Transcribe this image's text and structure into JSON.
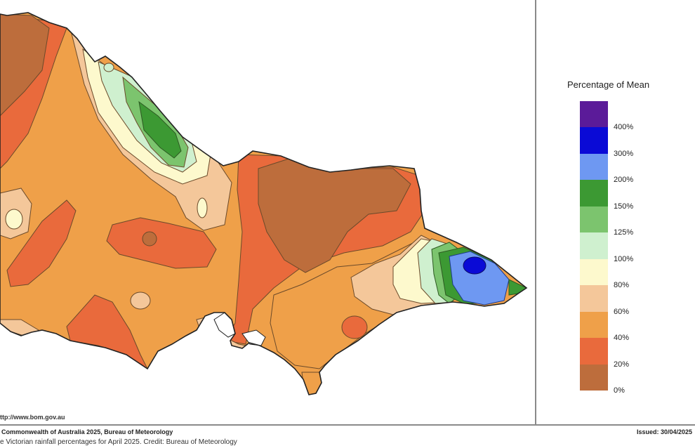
{
  "map": {
    "legend_title": "Percentage of Mean",
    "legend": [
      {
        "label": "",
        "color": "#5b1b99"
      },
      {
        "label": "400%",
        "color": "#0a0ad6"
      },
      {
        "label": "300%",
        "color": "#6e98f2"
      },
      {
        "label": "200%",
        "color": "#3c9933"
      },
      {
        "label": "150%",
        "color": "#7cc46e"
      },
      {
        "label": "125%",
        "color": "#cff0cf"
      },
      {
        "label": "100%",
        "color": "#fdf9cd"
      },
      {
        "label": "80%",
        "color": "#f4c79a"
      },
      {
        "label": "60%",
        "color": "#efa049"
      },
      {
        "label": "40%",
        "color": "#e96a3c"
      },
      {
        "label": "20%",
        "color": "#bd6d3c"
      },
      {
        "label": "0%",
        "color": ""
      }
    ],
    "url": "ttp://www.bom.gov.au",
    "copyright": "Commonwealth of Australia 2025, Bureau of Meteorology",
    "issued": "Issued: 30/04/2025",
    "caption": "e Victorian rainfall percentages for April 2025. Credit: Bureau of Meteorology"
  }
}
